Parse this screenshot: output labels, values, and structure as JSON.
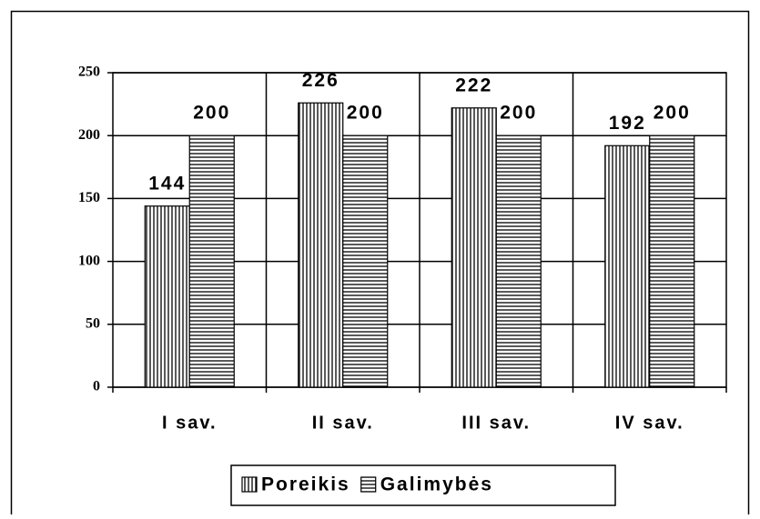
{
  "chart_data": {
    "type": "bar",
    "categories": [
      "I sav.",
      "II sav.",
      "III sav.",
      "IV sav."
    ],
    "series": [
      {
        "name": "Poreikis",
        "color": "#000000",
        "pattern": "vertical",
        "values": [
          144,
          226,
          222,
          192
        ]
      },
      {
        "name": "Galimybės",
        "color": "#000000",
        "pattern": "horizontal",
        "values": [
          200,
          200,
          200,
          200
        ]
      }
    ],
    "ylim": [
      0,
      250
    ],
    "yticks": [
      0,
      50,
      100,
      150,
      200,
      250
    ],
    "grid": true,
    "legend": "bottom"
  }
}
